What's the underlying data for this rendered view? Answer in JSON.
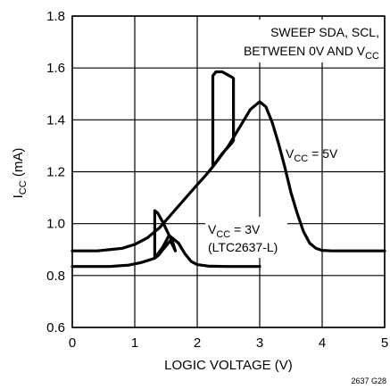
{
  "chart_data": {
    "type": "line",
    "xlabel": "LOGIC VOLTAGE (V)",
    "ylabel_main": "I",
    "ylabel_sub": "CC",
    "ylabel_unit": " (mA)",
    "xlim": [
      0,
      5
    ],
    "ylim": [
      0.6,
      1.8
    ],
    "x_ticks": [
      0,
      1,
      2,
      3,
      4,
      5
    ],
    "y_ticks": [
      0.6,
      0.8,
      1.0,
      1.2,
      1.4,
      1.6,
      1.8
    ],
    "y_tick_labels": [
      "0.6",
      "0.8",
      "1.0",
      "1.2",
      "1.4",
      "1.6",
      "1.8"
    ],
    "grid": true,
    "annotations": {
      "sweep_line1": "SWEEP SDA, SCL,",
      "sweep_line2_prefix": "BETWEEN 0V AND V",
      "sweep_line2_sub": "CC",
      "vcc5_prefix": "V",
      "vcc5_sub": "CC",
      "vcc5_suffix": " = 5V",
      "vcc3_prefix": "V",
      "vcc3_sub": "CC",
      "vcc3_suffix": " = 3V",
      "vcc3_note": "(LTC2637-L)"
    },
    "figure_code": "2637 G28",
    "series": [
      {
        "label_ref": "vcc5",
        "points": [
          [
            0.0,
            0.895
          ],
          [
            0.4,
            0.895
          ],
          [
            0.8,
            0.905
          ],
          [
            1.0,
            0.92
          ],
          [
            1.2,
            0.945
          ],
          [
            1.4,
            0.985
          ],
          [
            1.6,
            1.04
          ],
          [
            1.8,
            1.095
          ],
          [
            2.0,
            1.15
          ],
          [
            2.15,
            1.19
          ],
          [
            2.25,
            1.22
          ],
          [
            2.25,
            1.57
          ],
          [
            2.3,
            1.585
          ],
          [
            2.4,
            1.585
          ],
          [
            2.55,
            1.565
          ],
          [
            2.58,
            1.56
          ],
          [
            2.58,
            1.32
          ],
          [
            2.55,
            1.31
          ],
          [
            2.4,
            1.27
          ],
          [
            2.25,
            1.22
          ],
          [
            2.3,
            1.235
          ],
          [
            2.5,
            1.3
          ],
          [
            2.7,
            1.38
          ],
          [
            2.85,
            1.44
          ],
          [
            3.0,
            1.47
          ],
          [
            3.1,
            1.45
          ],
          [
            3.2,
            1.39
          ],
          [
            3.3,
            1.31
          ],
          [
            3.4,
            1.22
          ],
          [
            3.5,
            1.12
          ],
          [
            3.6,
            1.04
          ],
          [
            3.7,
            0.97
          ],
          [
            3.8,
            0.925
          ],
          [
            3.9,
            0.905
          ],
          [
            4.0,
            0.897
          ],
          [
            4.15,
            0.895
          ],
          [
            4.5,
            0.895
          ],
          [
            5.0,
            0.895
          ]
        ]
      },
      {
        "label_ref": "vcc3",
        "points": [
          [
            0.0,
            0.835
          ],
          [
            0.6,
            0.835
          ],
          [
            0.9,
            0.84
          ],
          [
            1.1,
            0.85
          ],
          [
            1.3,
            0.865
          ],
          [
            1.32,
            0.867
          ],
          [
            1.32,
            1.05
          ],
          [
            1.37,
            1.04
          ],
          [
            1.45,
            1.005
          ],
          [
            1.55,
            0.955
          ],
          [
            1.6,
            0.935
          ],
          [
            1.65,
            0.895
          ],
          [
            1.57,
            0.935
          ],
          [
            1.45,
            0.9
          ],
          [
            1.38,
            0.878
          ],
          [
            1.32,
            0.867
          ],
          [
            1.45,
            0.91
          ],
          [
            1.55,
            0.955
          ],
          [
            1.7,
            0.925
          ],
          [
            1.8,
            0.885
          ],
          [
            1.9,
            0.855
          ],
          [
            2.0,
            0.842
          ],
          [
            2.2,
            0.836
          ],
          [
            2.5,
            0.835
          ],
          [
            3.0,
            0.835
          ]
        ]
      }
    ]
  }
}
